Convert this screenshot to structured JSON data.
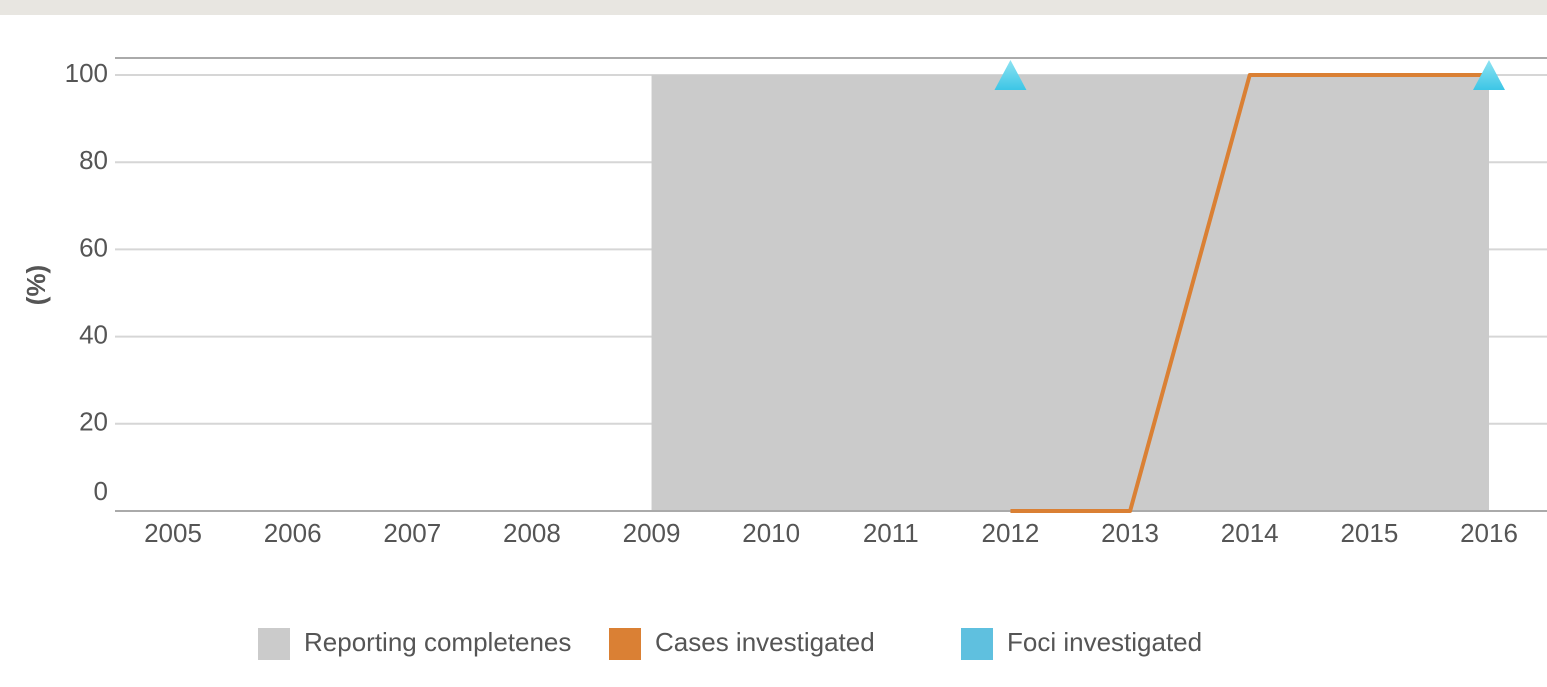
{
  "chart_data": {
    "type": "line",
    "y_label": "(%)",
    "categories": [
      "2005",
      "2006",
      "2007",
      "2008",
      "2009",
      "2010",
      "2011",
      "2012",
      "2013",
      "2014",
      "2015",
      "2016"
    ],
    "series": [
      {
        "name": "Reporting completenes",
        "color": "#cbcbcb",
        "kind": "area",
        "values": [
          null,
          null,
          null,
          null,
          100,
          100,
          100,
          100,
          100,
          100,
          100,
          100
        ]
      },
      {
        "name": "Cases investigated",
        "color": "#da8034",
        "kind": "line",
        "values": [
          null,
          null,
          null,
          null,
          null,
          null,
          null,
          0,
          0,
          100,
          100,
          100
        ]
      },
      {
        "name": "Foci investigated",
        "color": "#5fc0df",
        "kind": "marker",
        "values": [
          null,
          null,
          null,
          null,
          null,
          null,
          null,
          100,
          null,
          null,
          null,
          100
        ]
      }
    ],
    "ylim": [
      0,
      100
    ],
    "yticks": [
      0,
      20,
      40,
      60,
      80,
      100
    ],
    "grid": true
  }
}
